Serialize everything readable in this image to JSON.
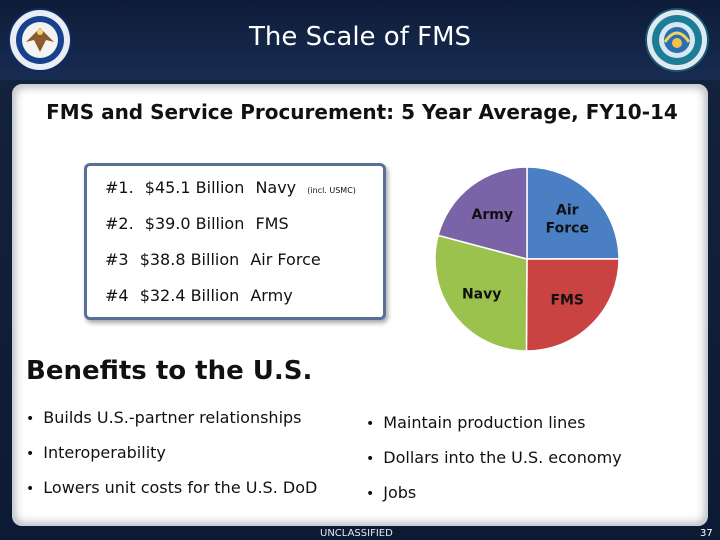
{
  "slide": {
    "title": "The Scale of FMS",
    "subtitle": "FMS and Service Procurement: 5 Year Average, FY10-14"
  },
  "rankings": [
    {
      "rank": "#1.",
      "amount": "$45.1 Billion",
      "service": "Navy",
      "note": "(incl. USMC)"
    },
    {
      "rank": "#2.",
      "amount": "$39.0 Billion",
      "service": "FMS",
      "note": ""
    },
    {
      "rank": "#3",
      "amount": "$38.8 Billion",
      "service": "Air Force",
      "note": ""
    },
    {
      "rank": "#4",
      "amount": "$32.4 Billion",
      "service": "Army",
      "note": ""
    }
  ],
  "chart_data": {
    "type": "pie",
    "categories": [
      "Air Force",
      "FMS",
      "Navy",
      "Army"
    ],
    "values": [
      38.8,
      39.0,
      45.1,
      32.4
    ],
    "colors": [
      "#4a7fc4",
      "#c94343",
      "#9bc24d",
      "#7b63a8"
    ],
    "labels": [
      "Air\nForce",
      "FMS",
      "Navy",
      "Army"
    ]
  },
  "benefits": {
    "heading": "Benefits to the U.S.",
    "left": [
      "Builds U.S.-partner relationships",
      "Interoperability",
      "Lowers unit costs for the U.S. DoD"
    ],
    "right": [
      "Maintain production lines",
      "Dollars into the U.S. economy",
      "Jobs"
    ]
  },
  "footer": {
    "classification": "UNCLASSIFIED",
    "page_number": "37"
  },
  "icons": {
    "left_seal": "dod-seal-icon",
    "right_seal": "dsca-seal-icon"
  }
}
